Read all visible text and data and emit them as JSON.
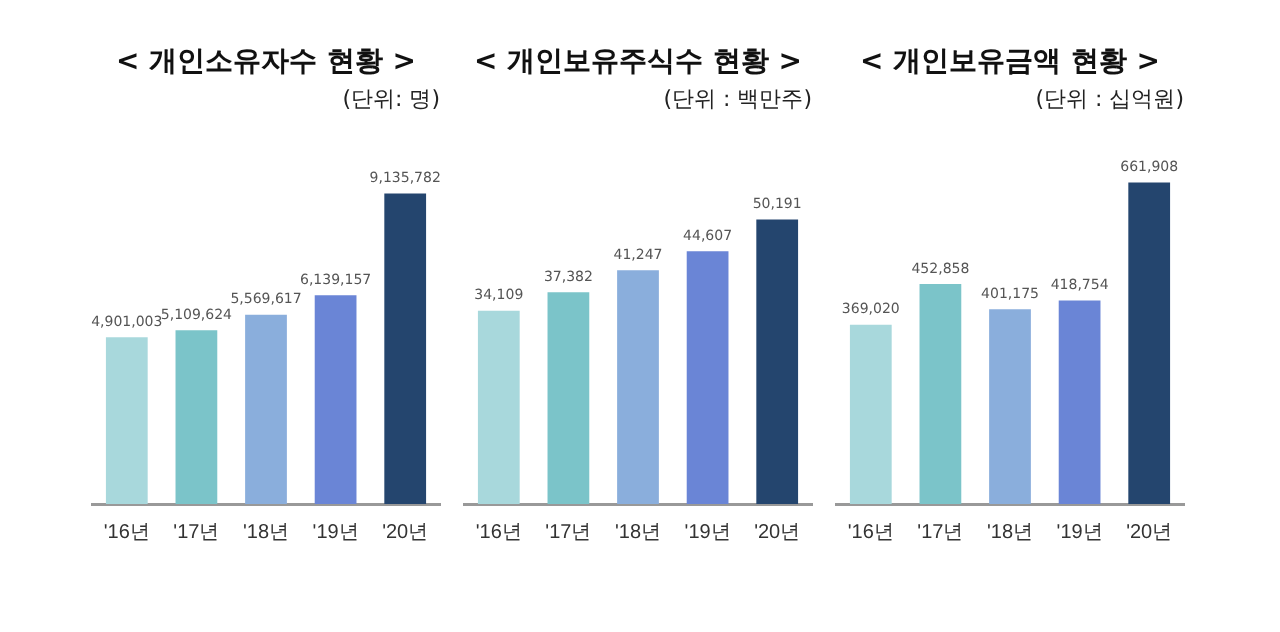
{
  "chart_data": [
    {
      "type": "bar",
      "title": "< 개인소유자수 현황 >",
      "subtitle": "(단위: 명)",
      "categories": [
        "'16년",
        "'17년",
        "'18년",
        "'19년",
        "'20년"
      ],
      "values": [
        4901003,
        5109624,
        5569617,
        6139157,
        9135782
      ],
      "value_labels": [
        "4,901,003",
        "5,109,624",
        "5,569,617",
        "6,139,157",
        "9,135,782"
      ],
      "colors": [
        "#a8d8dc",
        "#7bc4c9",
        "#8aaedc",
        "#6a85d6",
        "#24456e"
      ],
      "grid": false,
      "legend": false,
      "tick_labels": "x"
    },
    {
      "type": "bar",
      "title": "< 개인보유주식수 현황 >",
      "subtitle": "(단위 : 백만주)",
      "categories": [
        "'16년",
        "'17년",
        "'18년",
        "'19년",
        "'20년"
      ],
      "values": [
        34109,
        37382,
        41247,
        44607,
        50191
      ],
      "value_labels": [
        "34,109",
        "37,382",
        "41,247",
        "44,607",
        "50,191"
      ],
      "colors": [
        "#a8d8dc",
        "#7bc4c9",
        "#8aaedc",
        "#6a85d6",
        "#24456e"
      ],
      "grid": false,
      "legend": false,
      "tick_labels": "x"
    },
    {
      "type": "bar",
      "title": "< 개인보유금액 현황 >",
      "subtitle": "(단위 : 십억원)",
      "categories": [
        "'16년",
        "'17년",
        "'18년",
        "'19년",
        "'20년"
      ],
      "values": [
        369020,
        452858,
        401175,
        418754,
        661908
      ],
      "value_labels": [
        "369,020",
        "452,858",
        "401,175",
        "418,754",
        "661,908"
      ],
      "colors": [
        "#a8d8dc",
        "#7bc4c9",
        "#8aaedc",
        "#6a85d6",
        "#24456e"
      ],
      "grid": false,
      "legend": false,
      "tick_labels": "x"
    }
  ]
}
